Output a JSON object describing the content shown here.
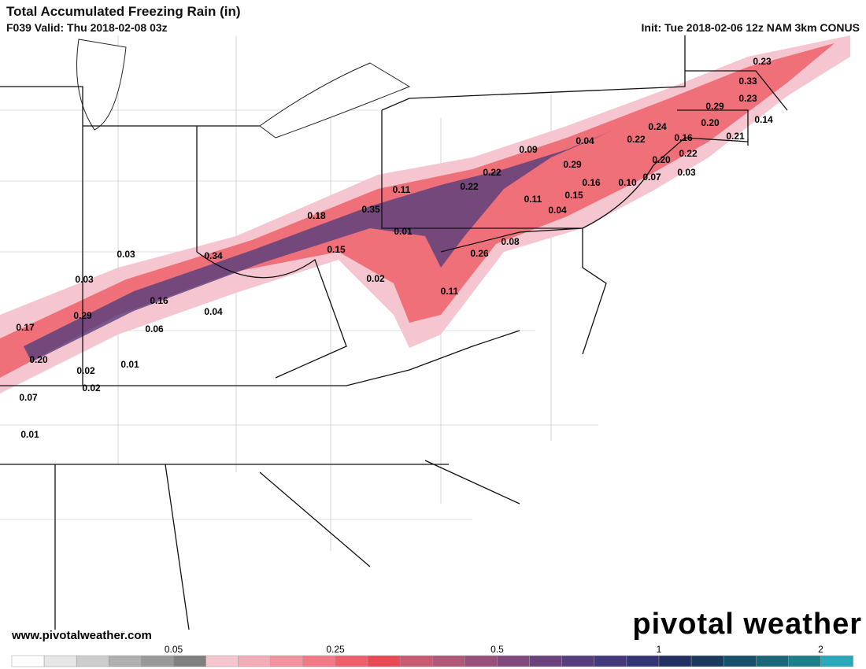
{
  "header": {
    "title": "Total Accumulated Freezing Rain (in)",
    "valid": "F039 Valid: Thu 2018-02-08 03z",
    "init": "Init: Tue 2018-02-06 12z NAM 3km CONUS"
  },
  "labels": [
    "0.23",
    "0.33",
    "0.23",
    "0.29",
    "0.14",
    "0.20",
    "0.24",
    "0.16",
    "0.21",
    "0.22",
    "0.09",
    "0.04",
    "0.22",
    "0.29",
    "0.20",
    "0.03",
    "0.22",
    "0.22",
    "0.07",
    "0.16",
    "0.10",
    "0.11",
    "0.11",
    "0.15",
    "0.35",
    "0.04",
    "0.18",
    "0.01",
    "0.08",
    "0.26",
    "0.15",
    "0.34",
    "0.03",
    "0.02",
    "0.03",
    "0.11",
    "0.16",
    "0.04",
    "0.29",
    "0.17",
    "0.06",
    "0.20",
    "0.01",
    "0.02",
    "0.02",
    "0.07",
    "0.01"
  ],
  "url": "www.pivotalweather.com",
  "watermark": "pivotal weather",
  "colorbar": {
    "colors": [
      "#ffffff",
      "#e6e6e6",
      "#cccccc",
      "#b0b0b0",
      "#999999",
      "#808080",
      "#f5c6d0",
      "#f3adb9",
      "#f294a0",
      "#f07a85",
      "#ee606a",
      "#e94b55",
      "#c85a72",
      "#b05878",
      "#98507a",
      "#80497c",
      "#6a437d",
      "#563e7d",
      "#44397a",
      "#333575",
      "#223062",
      "#1b3a5c",
      "#17506a",
      "#1a6878",
      "#1d8088",
      "#2aa7b8"
    ],
    "ticks": [
      "0.05",
      "0.25",
      "0.5",
      "1",
      "2"
    ]
  }
}
